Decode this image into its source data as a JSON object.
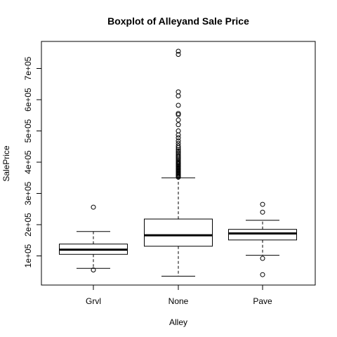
{
  "chart_data": {
    "type": "boxplot",
    "title": "Boxplot of Alleyand Sale Price",
    "xlabel": "Alley",
    "ylabel": "SalePrice",
    "ylim": [
      20000,
      780000
    ],
    "yticks": [
      100000,
      200000,
      300000,
      400000,
      500000,
      600000,
      700000
    ],
    "ytick_labels": [
      "1e+05",
      "2e+05",
      "3e+05",
      "4e+05",
      "5e+05",
      "6e+05",
      "7e+05"
    ],
    "grid": false,
    "categories": [
      "Grvl",
      "None",
      "Pave"
    ],
    "boxes": [
      {
        "category": "Grvl",
        "whisker_low": 60000,
        "q1": 105000,
        "median": 120000,
        "q3": 138000,
        "whisker_high": 178000,
        "outliers": [
          55000,
          256000
        ]
      },
      {
        "category": "None",
        "whisker_low": 35000,
        "q1": 131000,
        "median": 166000,
        "q3": 218000,
        "whisker_high": 350000,
        "outliers": [
          352000,
          355000,
          358000,
          361000,
          364000,
          367000,
          370000,
          373000,
          376000,
          379000,
          382000,
          385000,
          388000,
          391000,
          394000,
          397000,
          400000,
          404000,
          408000,
          412000,
          416000,
          420000,
          425000,
          430000,
          435000,
          440000,
          446000,
          452000,
          460000,
          468000,
          478000,
          487000,
          500000,
          520000,
          535000,
          552000,
          556000,
          582000,
          612000,
          625000,
          745000,
          755000
        ]
      },
      {
        "category": "Pave",
        "whisker_low": 102000,
        "q1": 151000,
        "median": 172000,
        "q3": 185000,
        "whisker_high": 214000,
        "outliers": [
          40000,
          92000,
          240000,
          265000
        ]
      }
    ]
  }
}
